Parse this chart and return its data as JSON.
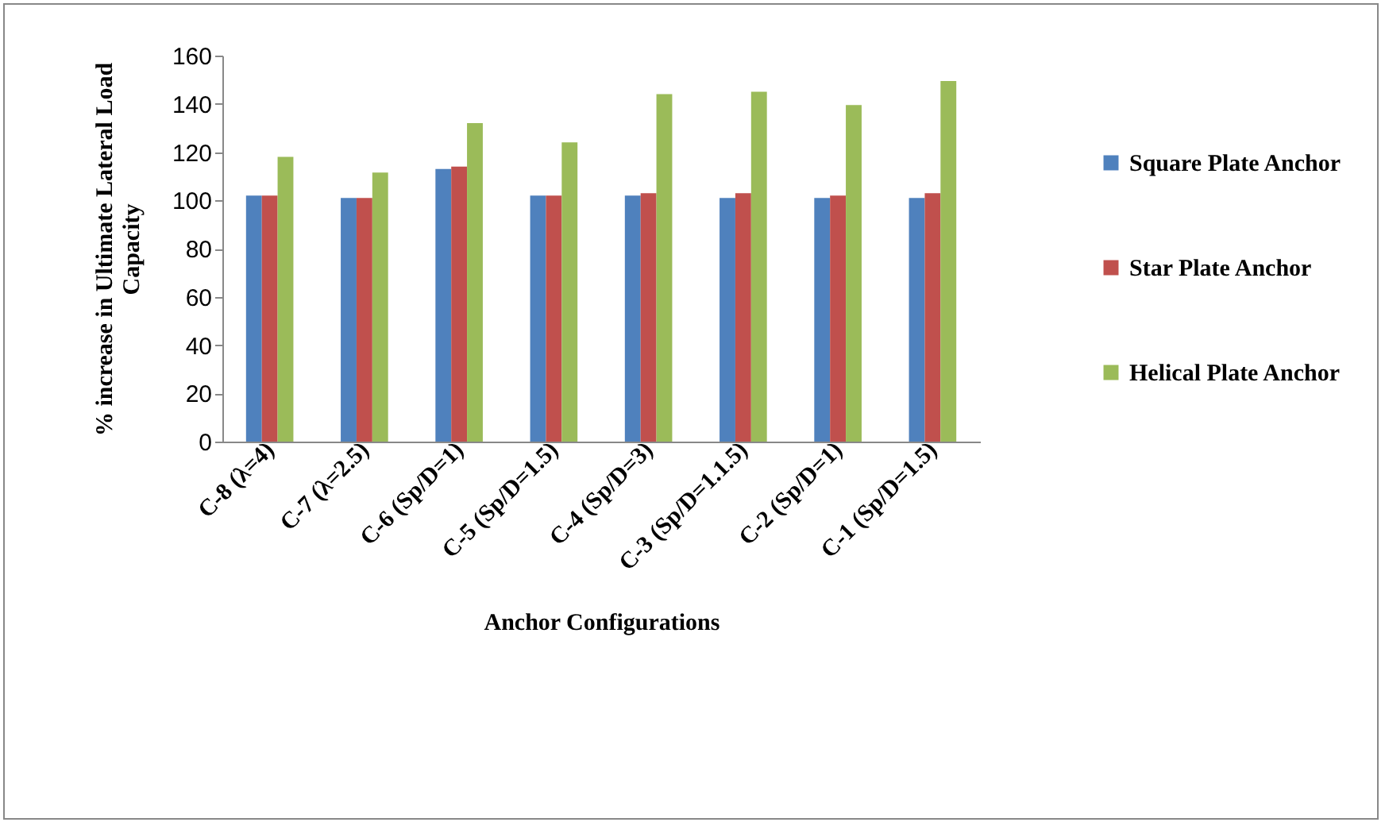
{
  "chart_data": {
    "type": "bar",
    "xlabel": "Anchor Configurations",
    "ylabel": "% increase in Ultimate Lateral Load Capacity",
    "categories": [
      "C-8  (λ=4)",
      "C-7  (λ=2.5)",
      "C-6  (Sp/D=1)",
      "C-5  (Sp/D=1.5)",
      "C-4  (Sp/D=3)",
      "C-3  (Sp/D=1.1.5)",
      "C-2  (Sp/D=1)",
      "C-1  (Sp/D=1.5)"
    ],
    "series": [
      {
        "name": "Square Plate Anchor",
        "color": "#4f81bd",
        "values": [
          102,
          101,
          113,
          102,
          102,
          101,
          101,
          101
        ]
      },
      {
        "name": "Star Plate Anchor",
        "color": "#c0504d",
        "values": [
          102,
          101,
          114,
          102,
          103,
          103,
          102,
          103
        ]
      },
      {
        "name": "Helical Plate Anchor",
        "color": "#9bbb59",
        "values": [
          118,
          111.5,
          132,
          124,
          144,
          145,
          139.5,
          149.5
        ]
      }
    ],
    "ylim": [
      0,
      160
    ],
    "yticks": [
      0,
      20,
      40,
      60,
      80,
      100,
      120,
      140,
      160
    ],
    "grid": false,
    "legend": "right"
  }
}
